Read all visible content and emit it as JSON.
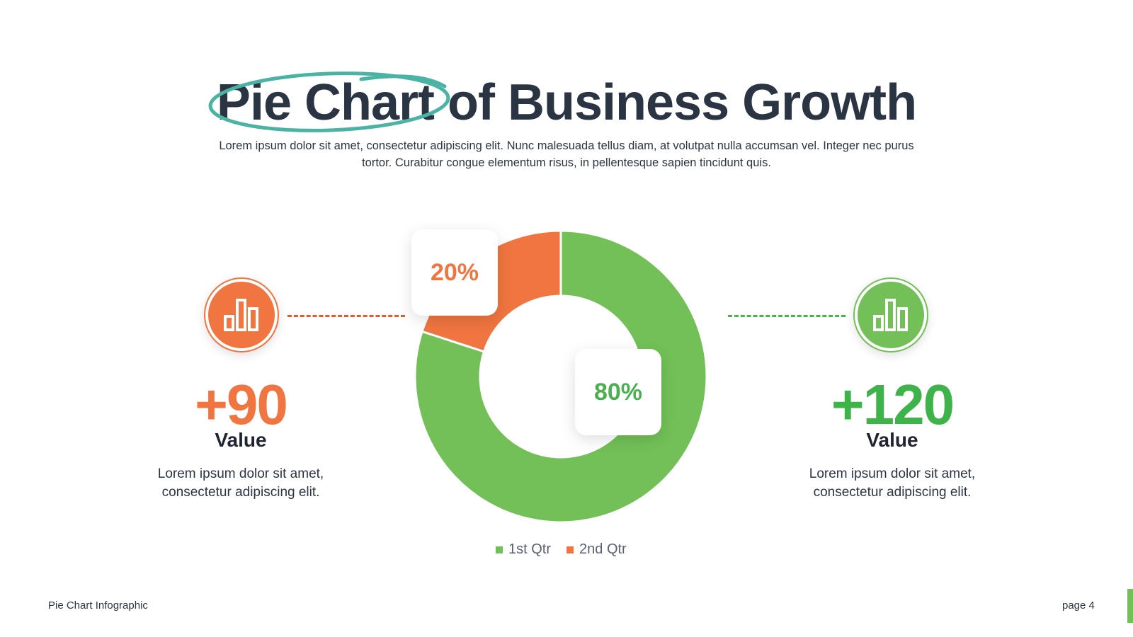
{
  "title": "Pie Chart of Business Growth",
  "subtitle": "Lorem ipsum dolor sit amet, consectetur adipiscing elit. Nunc malesuada tellus diam, at volutpat nulla accumsan vel. Integer nec purus tortor. Curabitur congue elementum risus, in pellentesque sapien tincidunt quis.",
  "colors": {
    "orange": "#f07540",
    "green": "#72c057",
    "text": "#2b3442"
  },
  "left_stat": {
    "icon": "bar-chart-icon",
    "value": "+90",
    "label": "Value",
    "description": "Lorem ipsum dolor sit amet, consectetur adipiscing elit."
  },
  "right_stat": {
    "icon": "bar-chart-icon",
    "value": "+120",
    "label": "Value",
    "description": "Lorem ipsum dolor sit amet, consectetur adipiscing elit."
  },
  "chart_data": {
    "type": "pie",
    "variant": "donut",
    "categories": [
      "1st Qtr",
      "2nd Qtr"
    ],
    "values": [
      80,
      20
    ],
    "data_labels": [
      "80%",
      "20%"
    ],
    "colors": [
      "#72c057",
      "#f07540"
    ],
    "legend_position": "bottom"
  },
  "footer": {
    "left": "Pie Chart Infographic",
    "right": "page 4"
  }
}
